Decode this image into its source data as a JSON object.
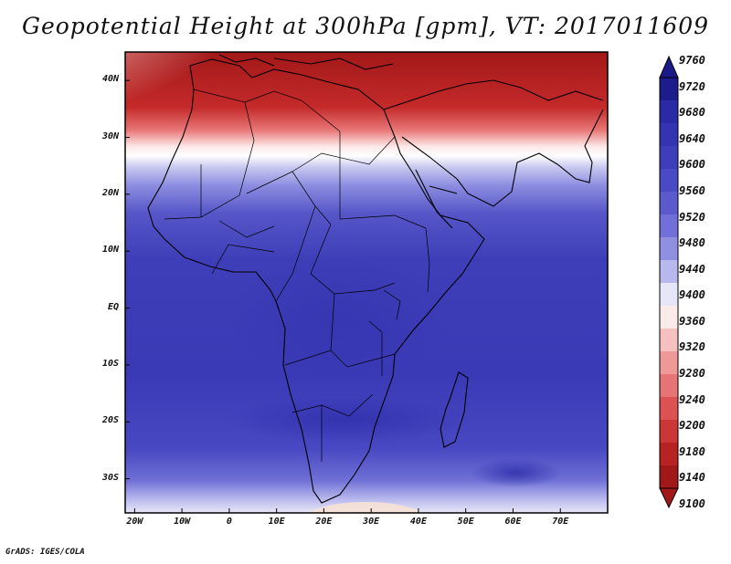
{
  "title": "Geopotential Height at 300hPa [gpm], VT: 2017011609",
  "credit": "GrADS: IGES/COLA",
  "map": {
    "lon_range": [
      -22,
      80
    ],
    "lat_range": [
      -36,
      45
    ],
    "x_ticks": [
      "20W",
      "10W",
      "0",
      "10E",
      "20E",
      "30E",
      "40E",
      "50E",
      "60E",
      "70E"
    ],
    "y_ticks": [
      "40N",
      "30N",
      "20N",
      "10N",
      "EQ",
      "10S",
      "20S",
      "30S"
    ]
  },
  "colorbar": {
    "levels": [
      "9760",
      "9720",
      "9680",
      "9640",
      "9600",
      "9560",
      "9520",
      "9480",
      "9440",
      "9400",
      "9360",
      "9320",
      "9280",
      "9240",
      "9200",
      "9180",
      "9140",
      "9100"
    ],
    "colors": [
      "#1c1c8c",
      "#2a2aa4",
      "#3434b2",
      "#3e3eba",
      "#4a4ac4",
      "#5a5ace",
      "#7070d8",
      "#9090e2",
      "#b8b8ee",
      "#e6e6f8",
      "#fbeaea",
      "#f6c0c0",
      "#ef9898",
      "#e67474",
      "#dc5252",
      "#cc3636",
      "#b82222",
      "#a01818"
    ]
  }
}
